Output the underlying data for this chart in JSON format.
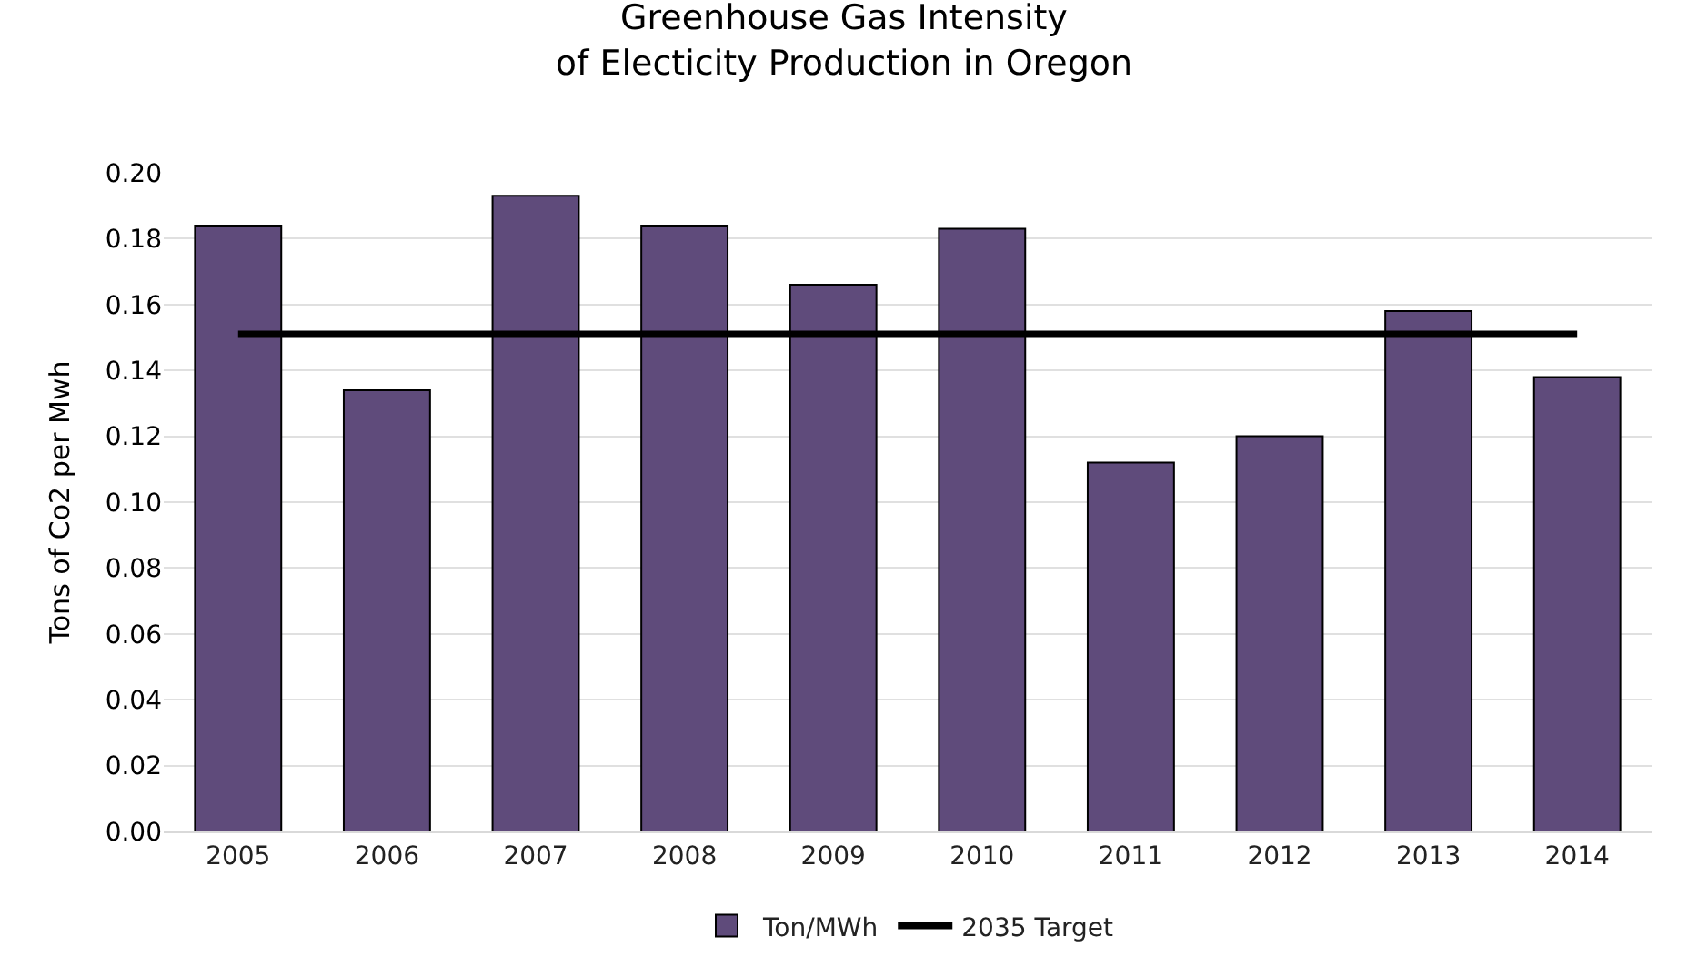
{
  "chart_data": {
    "type": "bar",
    "title": "Greenhouse Gas Intensity\nof Electicity Production in Oregon",
    "ylabel": "Tons of Co2 per Mwh",
    "categories": [
      "2005",
      "2006",
      "2007",
      "2008",
      "2009",
      "2010",
      "2011",
      "2012",
      "2013",
      "2014"
    ],
    "series": [
      {
        "name": "Ton/MWh",
        "color": "#5f4b7b",
        "values": [
          0.184,
          0.134,
          0.193,
          0.184,
          0.166,
          0.183,
          0.112,
          0.12,
          0.158,
          0.138
        ]
      },
      {
        "name": "2035 Target",
        "type": "line",
        "color": "#000000",
        "values": [
          0.151,
          0.151,
          0.151,
          0.151,
          0.151,
          0.151,
          0.151,
          0.151,
          0.151,
          0.151
        ]
      }
    ],
    "ylim": [
      0,
      0.2
    ],
    "yticks": [
      {
        "value": 0,
        "label": "0.00"
      },
      {
        "value": 0.02,
        "label": "0.02"
      },
      {
        "value": 0.04,
        "label": "0.04"
      },
      {
        "value": 0.06,
        "label": "0.06"
      },
      {
        "value": 0.08,
        "label": "0.08"
      },
      {
        "value": 0.1,
        "label": "0.10"
      },
      {
        "value": 0.12,
        "label": "0.12"
      },
      {
        "value": 0.14,
        "label": "0.14"
      },
      {
        "value": 0.16,
        "label": "0.16"
      },
      {
        "value": 0.18,
        "label": "0.18"
      },
      {
        "value": 0.2,
        "label": "0.20"
      }
    ],
    "grid": "y",
    "legend": "bottom"
  }
}
